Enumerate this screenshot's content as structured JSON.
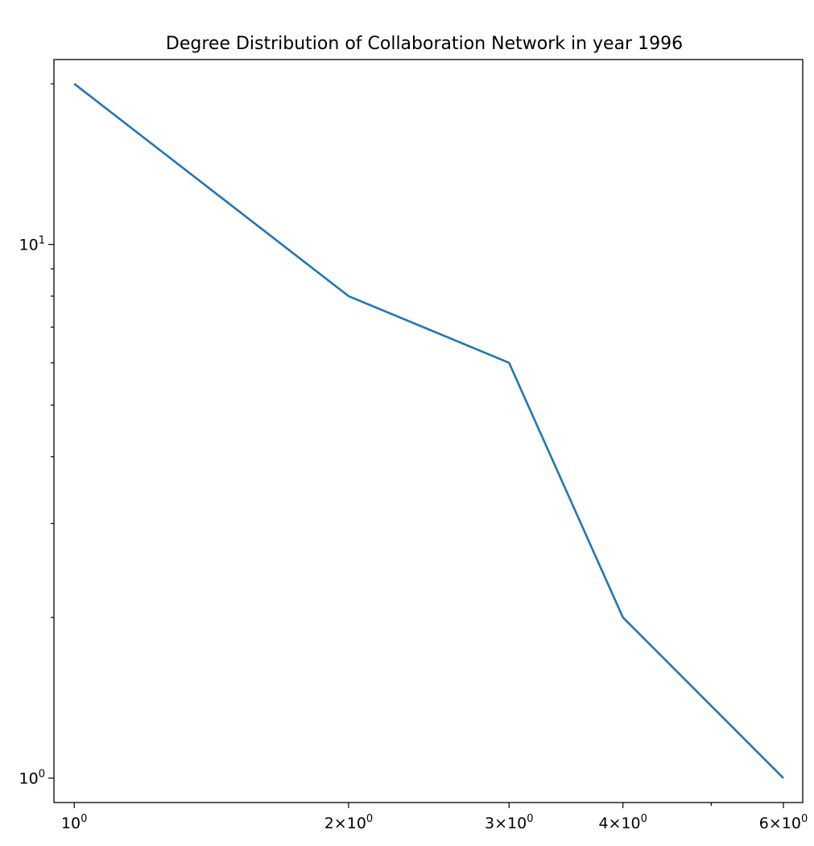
{
  "chart_data": {
    "type": "line",
    "title": "Degree Distribution of Collaboration Network in year 1996",
    "xlabel": "",
    "ylabel": "",
    "xscale": "log",
    "yscale": "log",
    "xlim": [
      0.95,
      6.3
    ],
    "ylim": [
      0.9,
      22.2
    ],
    "grid": false,
    "legend": "none",
    "series": [
      {
        "x": [
          1,
          2,
          3,
          4,
          6
        ],
        "y": [
          20,
          8,
          6,
          2,
          1
        ],
        "color": "#1f77b4"
      }
    ],
    "x_ticks": [
      {
        "value": 1,
        "base": "10",
        "exp": "0"
      },
      {
        "value": 2,
        "base": "2×10",
        "exp": "0"
      },
      {
        "value": 3,
        "base": "3×10",
        "exp": "0"
      },
      {
        "value": 4,
        "base": "4×10",
        "exp": "0"
      },
      {
        "value": 6,
        "base": "6×10",
        "exp": "0"
      }
    ],
    "x_minor_ticks": [
      5
    ],
    "y_ticks": [
      {
        "value": 1,
        "base": "10",
        "exp": "0"
      },
      {
        "value": 10,
        "base": "10",
        "exp": "1"
      }
    ],
    "y_minor_ticks": [
      2,
      3,
      4,
      5,
      6,
      7,
      8,
      9,
      20
    ]
  }
}
